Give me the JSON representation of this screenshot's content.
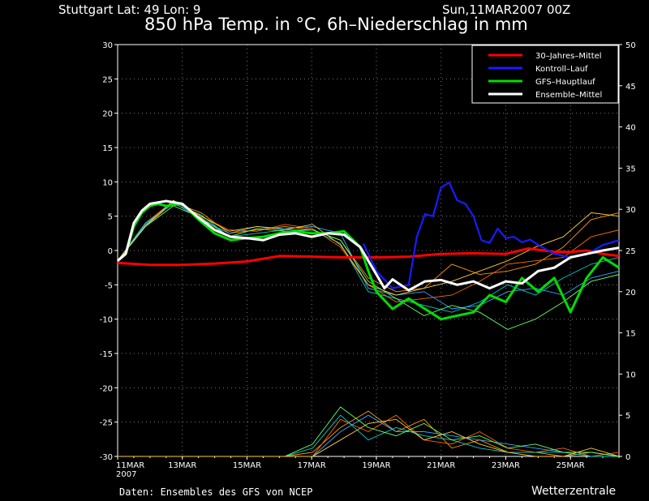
{
  "header": {
    "location": "Stuttgart   Lat: 49  Lon: 9",
    "run": "Sun,11MAR2007 00Z",
    "title": "850 hPa Temp. in °C, 6h–Niederschlag in mm"
  },
  "footer": {
    "source": "Daten: Ensembles des GFS von NCEP",
    "brand": "Wetterzentrale"
  },
  "chart_data": {
    "type": "line",
    "x_unit": "days since 11MAR2007 00Z",
    "xlim": [
      0,
      15.5
    ],
    "ylim_left": [
      -30,
      30
    ],
    "ylim_right": [
      0,
      50
    ],
    "y_ticks_left": [
      "30",
      "25",
      "20",
      "15",
      "10",
      "5",
      "0",
      "-5",
      "-10",
      "-15",
      "-20",
      "-25",
      "-30"
    ],
    "y_ticks_right": [
      "50",
      "45",
      "40",
      "35",
      "30",
      "25",
      "20",
      "15",
      "10",
      "5",
      "0"
    ],
    "x_ticks": [
      {
        "x": 0,
        "label": "11MAR",
        "label2": "2007"
      },
      {
        "x": 2,
        "label": "13MAR"
      },
      {
        "x": 4,
        "label": "15MAR"
      },
      {
        "x": 6,
        "label": "17MAR"
      },
      {
        "x": 8,
        "label": "19MAR"
      },
      {
        "x": 10,
        "label": "21MAR"
      },
      {
        "x": 12,
        "label": "23MAR"
      },
      {
        "x": 14,
        "label": "25MAR"
      }
    ],
    "grid": true,
    "legend_position": "top-right",
    "series": [
      {
        "name": "30–Jahres–Mittel",
        "color": "#ff0000",
        "x": [
          0,
          1,
          2,
          3,
          4,
          5,
          6,
          7,
          8,
          9,
          10,
          11,
          12,
          12.7,
          13.5,
          14,
          14.5,
          15,
          15.5
        ],
        "y": [
          -1.8,
          -2.1,
          -2.1,
          -1.9,
          -1.6,
          -0.8,
          -0.9,
          -1.0,
          -1.0,
          -0.9,
          -0.5,
          -0.4,
          -0.5,
          0.3,
          -0.2,
          -0.2,
          0.0,
          -0.5,
          -0.8
        ]
      },
      {
        "name": "Kontroll–Lauf",
        "color": "#1a1aff",
        "x": [
          7.6,
          8.0,
          8.5,
          9.0,
          9.25,
          9.5,
          9.75,
          10.0,
          10.25,
          10.5,
          10.75,
          11.0,
          11.25,
          11.5,
          11.75,
          12.0,
          12.25,
          12.5,
          12.75,
          13.0,
          13.5,
          14.0,
          14.5,
          15.0,
          15.5
        ],
        "y": [
          1.0,
          -3.0,
          -5.5,
          -5.0,
          2.0,
          5.3,
          5.0,
          9.2,
          9.9,
          7.3,
          6.8,
          5.0,
          1.5,
          1.1,
          3.2,
          1.8,
          2.0,
          1.2,
          1.6,
          0.8,
          -0.5,
          -1.0,
          -0.6,
          0.8,
          1.5
        ]
      },
      {
        "name": "GFS–Hauptlauf",
        "color": "#00dd00",
        "x": [
          0,
          0.25,
          0.5,
          0.75,
          1,
          1.25,
          1.5,
          2,
          2.5,
          3,
          3.5,
          4,
          4.5,
          5,
          5.5,
          6,
          6.5,
          7,
          7.5,
          7.75,
          8,
          8.5,
          9,
          9.5,
          10,
          10.5,
          11,
          11.5,
          12,
          12.5,
          13,
          13.5,
          14,
          14.5,
          15,
          15.5
        ],
        "y": [
          -1.5,
          -0.5,
          3.5,
          5.5,
          6.5,
          6.8,
          6.5,
          6.8,
          4.5,
          2.5,
          1.5,
          1.8,
          2.0,
          2.5,
          2.8,
          2.5,
          2.5,
          2.8,
          0.5,
          -3.0,
          -6.0,
          -8.5,
          -7.0,
          -8.5,
          -10.0,
          -9.5,
          -9.0,
          -6.5,
          -7.5,
          -4.0,
          -6.0,
          -4.0,
          -9.0,
          -4.0,
          -1.0,
          -2.5
        ]
      },
      {
        "name": "Ensemble–Mittel",
        "color": "#ffffff",
        "x": [
          0,
          0.25,
          0.5,
          0.75,
          1,
          1.25,
          1.5,
          2,
          2.5,
          3,
          3.5,
          4,
          4.5,
          5,
          5.5,
          6,
          6.5,
          7,
          7.5,
          8,
          8.25,
          8.5,
          9,
          9.5,
          10,
          10.5,
          11,
          11.5,
          12,
          12.5,
          13,
          13.5,
          14,
          14.5,
          15,
          15.5
        ],
        "y": [
          -1.5,
          -0.5,
          4.0,
          5.8,
          6.8,
          7.0,
          7.2,
          6.8,
          4.8,
          3.0,
          2.0,
          1.8,
          1.5,
          2.3,
          2.5,
          2.0,
          2.5,
          2.3,
          0.5,
          -3.5,
          -5.5,
          -4.2,
          -5.8,
          -4.5,
          -4.3,
          -5.0,
          -4.5,
          -5.5,
          -4.5,
          -4.8,
          -3.0,
          -2.5,
          -1.0,
          -0.5,
          0.0,
          0.4
        ]
      }
    ],
    "ensemble_members": [
      {
        "color": "#ff9900",
        "y_temp": [
          -1.5,
          3.5,
          7.0,
          5.5,
          2.5,
          3.0,
          3.5,
          3.0,
          1.5,
          -4.0,
          -6.0,
          -5.5,
          -2.0,
          -3.5,
          -3.0,
          -2.0,
          0.5,
          4.5,
          5.5
        ],
        "y_precip": [
          0,
          0,
          0,
          0,
          0,
          0,
          0,
          0.5,
          3.5,
          5.5,
          3.0,
          4.5,
          1.0,
          2.0,
          0.5,
          0.5,
          0,
          0.5,
          0
        ]
      },
      {
        "color": "#ff6600",
        "y_temp": [
          -1.5,
          4.0,
          7.2,
          5.0,
          3.0,
          2.8,
          3.8,
          3.2,
          0.5,
          -5.0,
          -7.5,
          -7.0,
          -6.5,
          -4.5,
          -2.0,
          -1.5,
          -1.0,
          2.0,
          3.0
        ],
        "y_precip": [
          0,
          0,
          0,
          0,
          0,
          0,
          0,
          0,
          4.5,
          3.0,
          5.0,
          2.0,
          1.5,
          3.0,
          1.0,
          0.5,
          1.0,
          0,
          0.5
        ]
      },
      {
        "color": "#00cccc",
        "y_temp": [
          -1.5,
          4.0,
          6.8,
          5.2,
          2.0,
          2.5,
          3.0,
          3.0,
          1.0,
          -6.0,
          -7.0,
          -8.0,
          -9.0,
          -7.5,
          -5.0,
          -6.5,
          -4.0,
          -2.0,
          -1.0
        ],
        "y_precip": [
          0,
          0,
          0,
          0,
          0,
          0,
          0,
          1.0,
          5.0,
          2.0,
          3.5,
          2.5,
          2.0,
          1.0,
          0.5,
          0.5,
          0.5,
          0,
          0
        ]
      },
      {
        "color": "#33aaff",
        "y_temp": [
          -1.5,
          3.8,
          7.0,
          4.5,
          2.5,
          3.5,
          3.2,
          3.5,
          2.5,
          -5.5,
          -6.5,
          -6.0,
          -8.5,
          -8.0,
          -6.0,
          -5.5,
          -6.5,
          -4.0,
          -3.0
        ],
        "y_precip": [
          0,
          0,
          0,
          0,
          0,
          0,
          0,
          0,
          3.0,
          5.0,
          3.0,
          3.0,
          2.5,
          2.0,
          1.5,
          1.0,
          0.5,
          0.5,
          0
        ]
      },
      {
        "color": "#66ff66",
        "y_temp": [
          -1.5,
          3.5,
          6.5,
          4.8,
          2.0,
          3.2,
          2.8,
          3.0,
          1.5,
          -4.5,
          -7.0,
          -9.5,
          -8.0,
          -9.0,
          -11.5,
          -10.0,
          -7.5,
          -4.5,
          -3.5
        ],
        "y_precip": [
          0,
          0,
          0,
          0,
          0,
          0,
          0,
          1.5,
          6.0,
          3.5,
          2.5,
          4.0,
          2.0,
          2.5,
          1.0,
          1.5,
          0.5,
          0.5,
          0
        ]
      },
      {
        "color": "#ffcc33",
        "y_temp": [
          -1.5,
          3.6,
          7.3,
          5.0,
          2.8,
          3.5,
          3.0,
          3.8,
          0.8,
          -5.0,
          -6.5,
          -5.5,
          -4.5,
          -3.0,
          -1.5,
          0.5,
          2.0,
          5.5,
          5.0
        ],
        "y_precip": [
          0,
          0,
          0,
          0,
          0,
          0,
          0,
          0,
          2.0,
          4.0,
          4.5,
          2.0,
          3.0,
          1.5,
          0.5,
          0,
          0,
          1.0,
          0
        ]
      }
    ]
  }
}
